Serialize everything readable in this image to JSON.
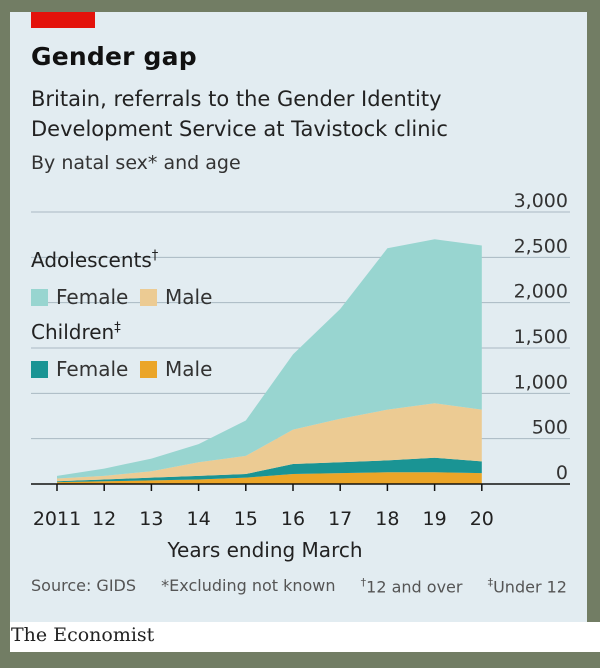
{
  "header": {
    "title": "Gender gap",
    "subtitle": "Britain, referrals to the Gender Identity Development Service at Tavistock clinic",
    "note": "By natal sex* and age"
  },
  "legend": {
    "adolescents_label": "Adolescents",
    "adolescents_mark": "†",
    "children_label": "Children",
    "children_mark": "‡",
    "female_label": "Female",
    "male_label": "Male"
  },
  "footer": {
    "source": "Source: GIDS",
    "note1": "*Excluding not known",
    "note2_mark": "†",
    "note2": "12 and over",
    "note3_mark": "‡",
    "note3": "Under 12"
  },
  "brand": "The Economist",
  "colors": {
    "adolescent_female": "#98d5d0",
    "adolescent_male": "#eccb93",
    "child_female": "#1a9494",
    "child_male": "#eba528",
    "red_tag": "#e3120b"
  },
  "chart_data": {
    "type": "area",
    "stacked": true,
    "x": [
      "2011",
      "12",
      "13",
      "14",
      "15",
      "16",
      "17",
      "18",
      "19",
      "20"
    ],
    "xlabel": "Years ending March",
    "ylabel": "",
    "ylim": [
      0,
      3000
    ],
    "yticks": [
      "3,000",
      "2,500",
      "2,000",
      "1,500",
      "1,000",
      "500",
      "0"
    ],
    "ytick_values": [
      3000,
      2500,
      2000,
      1500,
      1000,
      500,
      0
    ],
    "grid": true,
    "series": [
      {
        "name": "Children Male",
        "values": [
          20,
          30,
          40,
          50,
          70,
          110,
          120,
          130,
          130,
          120
        ]
      },
      {
        "name": "Children Female",
        "values": [
          10,
          20,
          30,
          40,
          40,
          110,
          120,
          130,
          160,
          130
        ]
      },
      {
        "name": "Adolescents Male",
        "values": [
          30,
          40,
          70,
          150,
          200,
          380,
          480,
          560,
          600,
          570
        ]
      },
      {
        "name": "Adolescents Female",
        "values": [
          30,
          80,
          140,
          200,
          390,
          830,
          1210,
          1780,
          1810,
          1810
        ]
      }
    ]
  }
}
